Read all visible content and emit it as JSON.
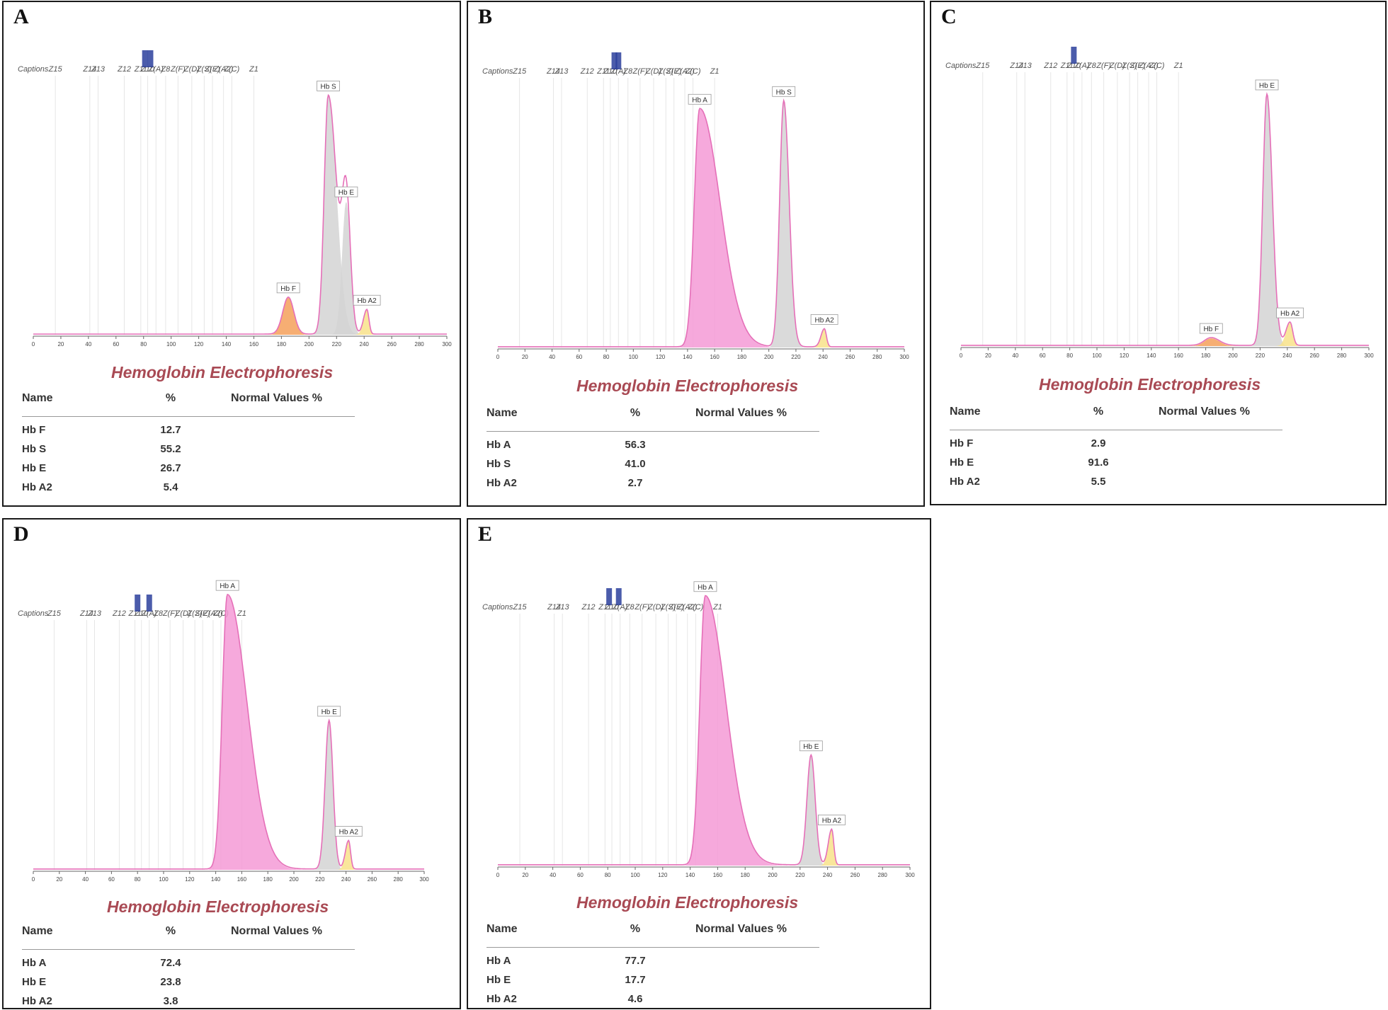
{
  "captions": {
    "label": "Captions",
    "zones": [
      "Z15",
      "Z14",
      "Z13",
      "Z12",
      "Z11",
      "Z10",
      "Z(A)",
      "Z8",
      "Z(F)",
      "Z(D)",
      "Z(S)",
      "Z(E)",
      "Z(A2)",
      "Z(C)",
      "Z1"
    ],
    "zone_positions": [
      16,
      41,
      47,
      66,
      78,
      83,
      89,
      96,
      105,
      115,
      124,
      130,
      138,
      144,
      160
    ]
  },
  "x_axis_ticks": [
    0,
    20,
    40,
    60,
    80,
    100,
    120,
    140,
    160,
    180,
    200,
    220,
    240,
    260,
    280,
    300
  ],
  "colors": {
    "title": "#a94a54",
    "baseline": "#e56fb8",
    "Hb A": "#f59ad6",
    "Hb S": "#d4d4d4",
    "Hb E": "#d4d4d4",
    "Hb F": "#f4a05a",
    "Hb A2": "#f8e28a",
    "band": "#2c3f9c"
  },
  "chart_data": [
    {
      "id": "A",
      "type": "area",
      "title": "Hemoglobin Electrophoresis",
      "xlim": [
        0,
        300
      ],
      "table_headers": {
        "name": "Name",
        "percent": "%",
        "normal": "Normal Values %"
      },
      "table": [
        {
          "name": "Hb F",
          "value": "12.7"
        },
        {
          "name": "Hb S",
          "value": "55.2"
        },
        {
          "name": "Hb E",
          "value": "26.7"
        },
        {
          "name": "Hb A2",
          "value": "5.4"
        }
      ],
      "peaks": [
        {
          "label": "Hb F",
          "x": 185,
          "height": 0.15,
          "width": 4,
          "tail": 4
        },
        {
          "label": "Hb S",
          "x": 214,
          "height": 0.97,
          "width": 3,
          "tail": 6
        },
        {
          "label": "Hb E",
          "x": 227,
          "height": 0.54,
          "width": 3,
          "tail": 3
        },
        {
          "label": "Hb A2",
          "x": 242,
          "height": 0.1,
          "width": 2.5,
          "tail": 1.5
        }
      ],
      "bands": [
        81,
        85
      ]
    },
    {
      "id": "B",
      "type": "area",
      "title": "Hemoglobin Electrophoresis",
      "xlim": [
        0,
        300
      ],
      "table_headers": {
        "name": "Name",
        "percent": "%",
        "normal": "Normal Values %"
      },
      "table": [
        {
          "name": "Hb A",
          "value": "56.3"
        },
        {
          "name": "Hb S",
          "value": "41.0"
        },
        {
          "name": "Hb A2",
          "value": "2.7"
        }
      ],
      "peaks": [
        {
          "label": "Hb A",
          "x": 149,
          "height": 0.92,
          "width": 4,
          "tail": 15
        },
        {
          "label": "Hb S",
          "x": 211,
          "height": 0.95,
          "width": 3,
          "tail": 4
        },
        {
          "label": "Hb A2",
          "x": 241,
          "height": 0.07,
          "width": 2.5,
          "tail": 1.5
        }
      ],
      "bands": [
        86,
        89
      ]
    },
    {
      "id": "C",
      "type": "area",
      "title": "Hemoglobin Electrophoresis",
      "xlim": [
        0,
        300
      ],
      "table_headers": {
        "name": "Name",
        "percent": "%",
        "normal": "Normal Values %"
      },
      "table": [
        {
          "name": "Hb F",
          "value": "2.9"
        },
        {
          "name": "Hb E",
          "value": "91.6"
        },
        {
          "name": "Hb A2",
          "value": "5.5"
        }
      ],
      "peaks": [
        {
          "label": "Hb F",
          "x": 184,
          "height": 0.03,
          "width": 5,
          "tail": 6
        },
        {
          "label": "Hb E",
          "x": 225,
          "height": 0.97,
          "width": 3,
          "tail": 4
        },
        {
          "label": "Hb A2",
          "x": 242,
          "height": 0.09,
          "width": 3,
          "tail": 2
        }
      ],
      "bands": [
        83
      ]
    },
    {
      "id": "D",
      "type": "area",
      "title": "Hemoglobin Electrophoresis",
      "xlim": [
        0,
        300
      ],
      "table_headers": {
        "name": "Name",
        "percent": "%",
        "normal": "Normal Values %"
      },
      "table": [
        {
          "name": "Hb A",
          "value": "72.4"
        },
        {
          "name": "Hb E",
          "value": "23.8"
        },
        {
          "name": "Hb A2",
          "value": "3.8"
        }
      ],
      "peaks": [
        {
          "label": "Hb A",
          "x": 149,
          "height": 0.96,
          "width": 4,
          "tail": 15
        },
        {
          "label": "Hb E",
          "x": 227,
          "height": 0.52,
          "width": 3,
          "tail": 3
        },
        {
          "label": "Hb A2",
          "x": 242,
          "height": 0.1,
          "width": 2.5,
          "tail": 1.5
        }
      ],
      "bands": [
        80,
        89
      ]
    },
    {
      "id": "E",
      "type": "area",
      "title": "Hemoglobin Electrophoresis",
      "xlim": [
        0,
        300
      ],
      "table_headers": {
        "name": "Name",
        "percent": "%",
        "normal": "Normal Values %"
      },
      "table": [
        {
          "name": "Hb A",
          "value": "77.7"
        },
        {
          "name": "Hb E",
          "value": "17.7"
        },
        {
          "name": "Hb A2",
          "value": "4.6"
        }
      ],
      "peaks": [
        {
          "label": "Hb A",
          "x": 151,
          "height": 0.98,
          "width": 4,
          "tail": 15
        },
        {
          "label": "Hb E",
          "x": 228,
          "height": 0.4,
          "width": 3,
          "tail": 3
        },
        {
          "label": "Hb A2",
          "x": 243,
          "height": 0.13,
          "width": 2.5,
          "tail": 1.5
        }
      ],
      "bands": [
        81,
        88
      ]
    }
  ]
}
